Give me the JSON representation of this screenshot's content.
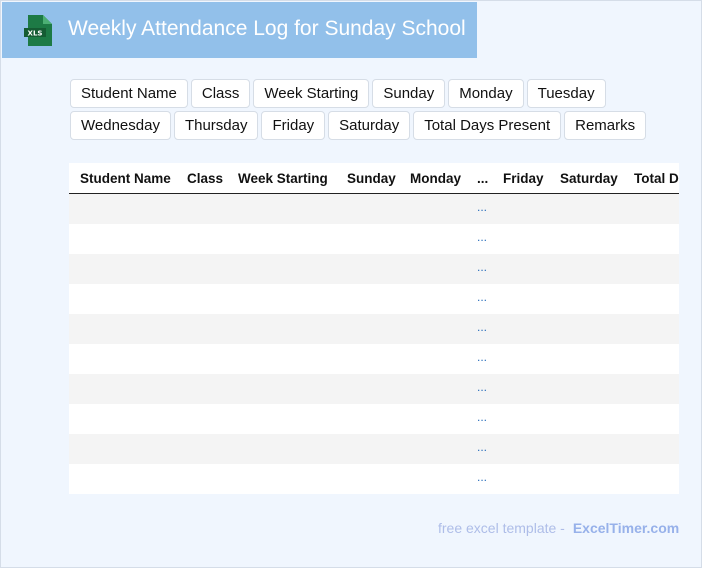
{
  "header": {
    "title": "Weekly Attendance Log for Sunday School",
    "logo_text": "XLS"
  },
  "chips": [
    "Student Name",
    "Class",
    "Week Starting",
    "Sunday",
    "Monday",
    "Tuesday",
    "Wednesday",
    "Thursday",
    "Friday",
    "Saturday",
    "Total Days Present",
    "Remarks"
  ],
  "table": {
    "columns": [
      "Student Name",
      "Class",
      "Week Starting",
      "Sunday",
      "Monday",
      "...",
      "Friday",
      "Saturday",
      "Total Days Present"
    ],
    "rows": [
      "...",
      "...",
      "...",
      "...",
      "...",
      "...",
      "...",
      "...",
      "...",
      "..."
    ]
  },
  "footer": {
    "text": "free excel template -",
    "brand": "ExcelTimer.com"
  },
  "colors": {
    "header_bg": "#92c0ea",
    "page_bg": "#f0f6fe",
    "logo": "#1d7a45"
  }
}
